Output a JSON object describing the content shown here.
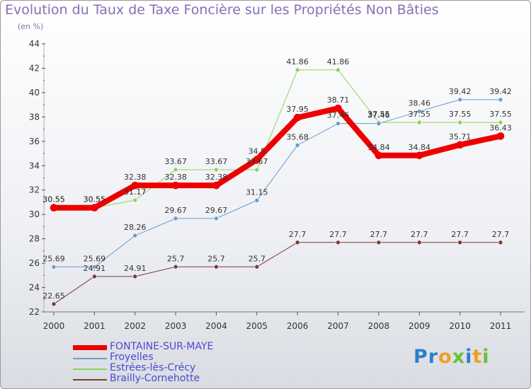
{
  "header": {
    "title": "Evolution du Taux de Taxe Foncière sur les Propriétés Non Bâties",
    "unit": "(en %)"
  },
  "logo": {
    "letters": [
      {
        "ch": "P",
        "color": "#2f7ec8"
      },
      {
        "ch": "r",
        "color": "#2f7ec8"
      },
      {
        "ch": "o",
        "color": "#f0a020"
      },
      {
        "ch": "x",
        "color": "#6cbf3a"
      },
      {
        "ch": "i",
        "color": "#2f7ec8"
      },
      {
        "ch": "t",
        "color": "#f0a020"
      },
      {
        "ch": "i",
        "color": "#6cbf3a"
      }
    ]
  },
  "chart_data": {
    "type": "line",
    "x": [
      "2000",
      "2001",
      "2002",
      "2003",
      "2004",
      "2005",
      "2006",
      "2007",
      "2008",
      "2009",
      "2010",
      "2011"
    ],
    "ylim": [
      22,
      44
    ],
    "yticks": [
      "22",
      "24",
      "26",
      "28",
      "30",
      "32",
      "34",
      "36",
      "38",
      "40",
      "42",
      "44"
    ],
    "grid": false,
    "legend_position": "bottom-left",
    "series": [
      {
        "name": "FONTAINE-SUR-MAYE",
        "color": "#ee0000",
        "width": 8,
        "values": [
          30.55,
          30.55,
          32.38,
          32.38,
          32.38,
          34.5,
          37.95,
          38.71,
          34.84,
          34.84,
          35.71,
          36.43
        ],
        "labels": [
          "30.55",
          "30.55",
          "32.38",
          "32.38",
          "32.38",
          "34.5",
          "37.95",
          "38.71",
          "34.84",
          "34.84",
          "35.71",
          "36.43"
        ]
      },
      {
        "name": "Froyelles",
        "color": "#6a9ccc",
        "width": 1,
        "values": [
          25.69,
          25.69,
          28.26,
          29.67,
          29.67,
          31.15,
          35.68,
          37.46,
          37.46,
          38.46,
          39.42,
          39.42
        ],
        "labels": [
          "25.69",
          "25.69",
          "28.26",
          "29.67",
          "29.67",
          "31.15",
          "35.68",
          "37.46",
          "37.46",
          "38.46",
          "39.42",
          "39.42"
        ]
      },
      {
        "name": "Estrées-lès-Crécy",
        "color": "#8ad35a",
        "width": 1,
        "values": [
          30.55,
          30.55,
          31.17,
          33.67,
          33.67,
          33.67,
          41.86,
          41.86,
          37.55,
          37.55,
          37.55,
          37.55
        ],
        "labels": [
          "30.55",
          "30.55",
          "31.17",
          "33.67",
          "33.67",
          "33.67",
          "41.86",
          "41.86",
          "37.55",
          "37.55",
          "37.55",
          "37.55"
        ]
      },
      {
        "name": "Brailly-Cornehotte",
        "color": "#7a3a3a",
        "width": 1,
        "values": [
          22.65,
          24.91,
          24.91,
          25.7,
          25.7,
          25.7,
          27.7,
          27.7,
          27.7,
          27.7,
          27.7,
          27.7
        ],
        "labels": [
          "22.65",
          "24.91",
          "24.91",
          "25.7",
          "25.7",
          "25.7",
          "27.7",
          "27.7",
          "27.7",
          "27.7",
          "27.7",
          "27.7"
        ]
      }
    ]
  }
}
